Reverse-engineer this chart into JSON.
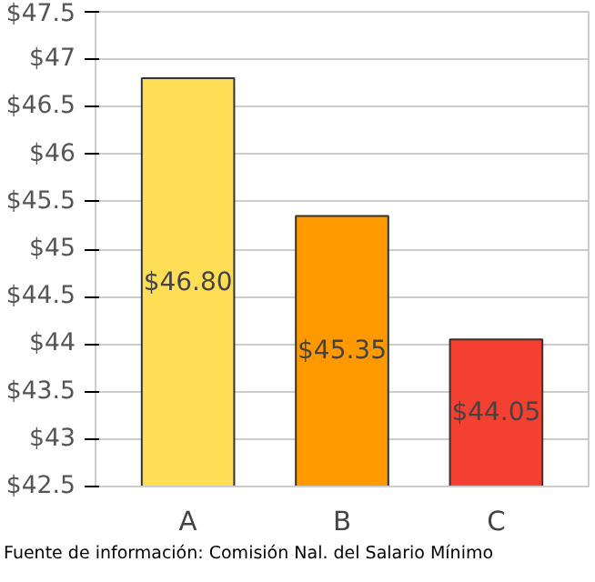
{
  "chart_data": {
    "type": "bar",
    "categories": [
      "A",
      "B",
      "C"
    ],
    "values": [
      46.8,
      45.35,
      44.05
    ],
    "colors": [
      "#ffdd55",
      "#ff9900",
      "#f44030"
    ],
    "value_labels": [
      "$46.80",
      "$45.35",
      "$44.05"
    ],
    "ylim": [
      42.5,
      47.5
    ],
    "yticks": [
      {
        "value": 42.5,
        "label": "$42.5"
      },
      {
        "value": 43,
        "label": "$43"
      },
      {
        "value": 43.5,
        "label": "$43.5"
      },
      {
        "value": 44,
        "label": "$44"
      },
      {
        "value": 44.5,
        "label": "$44.5"
      },
      {
        "value": 45,
        "label": "$45"
      },
      {
        "value": 45.5,
        "label": "$45.5"
      },
      {
        "value": 46,
        "label": "$46"
      },
      {
        "value": 46.5,
        "label": "$46.5"
      },
      {
        "value": 47,
        "label": "$47"
      },
      {
        "value": 47.5,
        "label": "$47.5"
      }
    ],
    "grid": "y",
    "annotations": [
      "Fuente de información: Comisión Nal. del Salario Mínimo"
    ]
  }
}
